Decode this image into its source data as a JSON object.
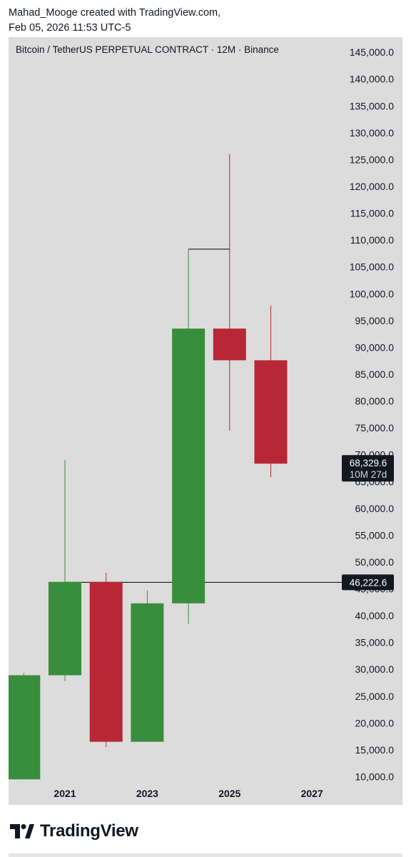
{
  "header": {
    "line1": "Mahad_Mooge created with TradingView.com,",
    "line2": "Feb 05, 2026 11:53 UTC-5"
  },
  "footer": {
    "brand": "TradingView"
  },
  "colors": {
    "up": "#388e3c",
    "down": "#b82735",
    "background": "#dcdcdc",
    "line": "#000000"
  },
  "chart_data": {
    "type": "candlestick",
    "title": "Bitcoin / TetherUS PERPETUAL CONTRACT · 12M · Binance",
    "x_ticks": [
      "2021",
      "2023",
      "2025",
      "2027"
    ],
    "y_ticks": [
      "10,000.0",
      "15,000.0",
      "20,000.0",
      "25,000.0",
      "30,000.0",
      "35,000.0",
      "40,000.0",
      "45,000.0",
      "50,000.0",
      "55,000.0",
      "60,000.0",
      "65,000.0",
      "70,000.0",
      "75,000.0",
      "80,000.0",
      "85,000.0",
      "90,000.0",
      "95,000.0",
      "100,000.0",
      "105,000.0",
      "110,000.0",
      "115,000.0",
      "120,000.0",
      "125,000.0",
      "130,000.0",
      "135,000.0",
      "140,000.0",
      "145,000.0"
    ],
    "y_range": [
      7000,
      148000
    ],
    "candles": [
      {
        "year": 2020,
        "open": 9500,
        "high": 29300,
        "low": 9500,
        "close": 28900
      },
      {
        "year": 2021,
        "open": 28900,
        "high": 69000,
        "low": 27800,
        "close": 46300
      },
      {
        "year": 2022,
        "open": 46300,
        "high": 48000,
        "low": 15500,
        "close": 16500
      },
      {
        "year": 2023,
        "open": 16500,
        "high": 44700,
        "low": 16500,
        "close": 42300
      },
      {
        "year": 2024,
        "open": 42300,
        "high": 108300,
        "low": 38500,
        "close": 93500
      },
      {
        "year": 2025,
        "open": 93500,
        "high": 126000,
        "low": 74500,
        "close": 87600
      },
      {
        "year": 2026,
        "open": 87600,
        "high": 97800,
        "low": 65800,
        "close": 68329.6
      }
    ],
    "last_price": {
      "value": 68329.6,
      "label": "68,329.6",
      "countdown": "10M 27d"
    },
    "horizontal_line": {
      "value": 46222.6,
      "label": "46,222.6"
    },
    "high_marker_segment": {
      "value": 108300,
      "from_year": 2024,
      "to_year": 2025
    }
  }
}
